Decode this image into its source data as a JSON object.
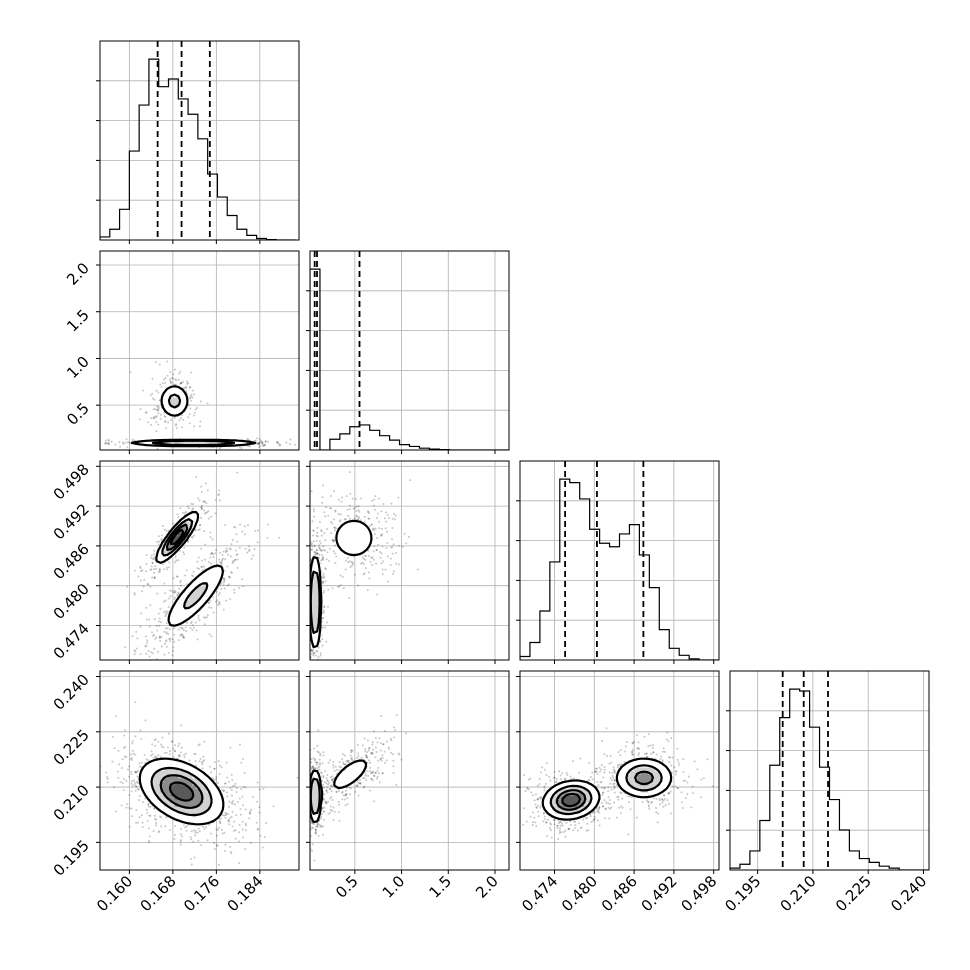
{
  "chart_data": {
    "type": "corner",
    "title": "",
    "grid": true,
    "parameters": [
      {
        "index": 0,
        "range": [
          0.1546,
          0.1912
        ],
        "ticks": [
          0.16,
          0.168,
          0.176,
          0.184
        ],
        "tick_labels": [
          "0.160",
          "0.168",
          "0.176",
          "0.184"
        ],
        "quantiles": [
          0.1652,
          0.1696,
          0.1748
        ],
        "hist": {
          "edges_start": 0.1546,
          "bin_width": 0.0018,
          "counts": [
            0.02,
            0.07,
            0.2,
            0.58,
            0.88,
            1.18,
            1.0,
            1.05,
            0.92,
            0.82,
            0.66,
            0.43,
            0.28,
            0.16,
            0.07,
            0.03,
            0.01,
            0.003,
            0.0,
            0.0
          ]
        }
      },
      {
        "index": 1,
        "range": [
          0.02,
          2.15
        ],
        "ticks": [
          0.5,
          1.0,
          1.5,
          2.0
        ],
        "tick_labels": [
          "0.5",
          "1.0",
          "1.5",
          "2.0"
        ],
        "quantiles": [
          0.07,
          0.095,
          0.55
        ],
        "hist": {
          "edges_start": 0.02,
          "bin_width": 0.1065,
          "counts": [
            2.02,
            0.0,
            0.12,
            0.18,
            0.26,
            0.28,
            0.22,
            0.16,
            0.11,
            0.06,
            0.04,
            0.02,
            0.01,
            0.005,
            0.0,
            0.0,
            0.0,
            0.0,
            0.0,
            0.0
          ]
        }
      },
      {
        "index": 2,
        "range": [
          0.4688,
          0.4988
        ],
        "ticks": [
          0.474,
          0.48,
          0.486,
          0.492,
          0.498
        ],
        "tick_labels": [
          "0.474",
          "0.480",
          "0.486",
          "0.492",
          "0.498"
        ],
        "quantiles": [
          0.4756,
          0.4804,
          0.4874
        ],
        "hist": {
          "edges_start": 0.4688,
          "bin_width": 0.0015,
          "counts": [
            0.03,
            0.15,
            0.42,
            0.84,
            1.55,
            1.52,
            1.38,
            1.12,
            1.0,
            0.97,
            1.08,
            1.16,
            0.9,
            0.62,
            0.26,
            0.1,
            0.04,
            0.01,
            0.0,
            0.0
          ]
        }
      },
      {
        "index": 3,
        "range": [
          0.1875,
          0.2415
        ],
        "ticks": [
          0.195,
          0.21,
          0.225,
          0.24
        ],
        "tick_labels": [
          "0.195",
          "0.210",
          "0.225",
          "0.240"
        ],
        "quantiles": [
          0.2018,
          0.2075,
          0.2141
        ],
        "hist": {
          "edges_start": 0.1875,
          "bin_width": 0.0027,
          "counts": [
            0.01,
            0.03,
            0.1,
            0.26,
            0.55,
            0.8,
            0.95,
            0.94,
            0.75,
            0.54,
            0.37,
            0.21,
            0.1,
            0.06,
            0.04,
            0.02,
            0.01,
            0.0,
            0.0,
            0.0
          ]
        }
      }
    ],
    "pairs": [
      {
        "x": 0,
        "y": 1,
        "modes": [
          {
            "cx": 0.1683,
            "cy": 0.545,
            "sx": 0.00135,
            "sy": 0.09,
            "rho": 0.0,
            "w": 0.45
          },
          {
            "cx": 0.1718,
            "cy": 0.09,
            "sx": 0.0055,
            "sy": 0.013,
            "rho": 0.0,
            "w": 0.55
          }
        ],
        "contour_levels": [
          0.88,
          0.6
        ],
        "scatter_n": 650
      },
      {
        "x": 0,
        "y": 2,
        "modes": [
          {
            "cx": 0.1688,
            "cy": 0.4873,
            "sx": 0.0019,
            "sy": 0.0019,
            "rho": 0.85,
            "w": 0.45
          },
          {
            "cx": 0.1722,
            "cy": 0.4785,
            "sx": 0.0032,
            "sy": 0.0029,
            "rho": 0.82,
            "w": 0.55
          }
        ],
        "contour_levels": [
          0.87,
          0.65,
          0.4,
          0.18
        ],
        "scatter_n": 900
      },
      {
        "x": 0,
        "y": 3,
        "modes": [
          {
            "cx": 0.1696,
            "cy": 0.2088,
            "sx": 0.0038,
            "sy": 0.0044,
            "rho": -0.4,
            "w": 1.0
          }
        ],
        "contour_levels": [
          0.87,
          0.65,
          0.4,
          0.15
        ],
        "scatter_n": 900
      },
      {
        "x": 1,
        "y": 2,
        "modes": [
          {
            "cx": 0.075,
            "cy": 0.4775,
            "sx": 0.03,
            "sy": 0.0034,
            "rho": 0.0,
            "w": 0.55
          },
          {
            "cx": 0.49,
            "cy": 0.4872,
            "sx": 0.16,
            "sy": 0.0022,
            "rho": 0.0,
            "w": 0.45
          }
        ],
        "contour_levels": [
          0.86,
          0.6
        ],
        "scatter_n": 800
      },
      {
        "x": 1,
        "y": 3,
        "modes": [
          {
            "cx": 0.075,
            "cy": 0.2075,
            "sx": 0.03,
            "sy": 0.0035,
            "rho": 0.0,
            "w": 0.55
          },
          {
            "cx": 0.45,
            "cy": 0.2135,
            "sx": 0.16,
            "sy": 0.0035,
            "rho": 0.7,
            "w": 0.45
          }
        ],
        "contour_levels": [
          0.86,
          0.6
        ],
        "scatter_n": 800
      },
      {
        "x": 2,
        "y": 3,
        "modes": [
          {
            "cx": 0.4765,
            "cy": 0.2065,
            "sx": 0.0021,
            "sy": 0.0026,
            "rho": 0.15,
            "w": 0.55
          },
          {
            "cx": 0.4875,
            "cy": 0.2125,
            "sx": 0.0022,
            "sy": 0.0028,
            "rho": 0.0,
            "w": 0.45
          }
        ],
        "contour_levels": [
          0.87,
          0.65,
          0.4,
          0.18
        ],
        "scatter_n": 900
      }
    ]
  }
}
